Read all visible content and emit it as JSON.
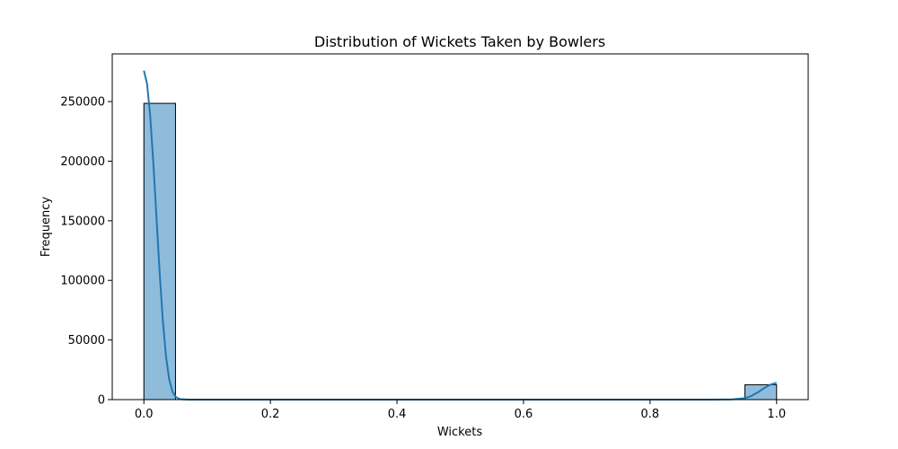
{
  "chart_data": {
    "type": "bar",
    "title": "Distribution of Wickets Taken by Bowlers",
    "xlabel": "Wickets",
    "ylabel": "Frequency",
    "xlim": [
      -0.05,
      1.05
    ],
    "ylim": [
      0,
      290000
    ],
    "xticks": [
      0.0,
      0.2,
      0.4,
      0.6,
      0.8,
      1.0
    ],
    "xtick_labels": [
      "0.0",
      "0.2",
      "0.4",
      "0.6",
      "0.8",
      "1.0"
    ],
    "yticks": [
      0,
      50000,
      100000,
      150000,
      200000,
      250000
    ],
    "ytick_labels": [
      "0",
      "50000",
      "100000",
      "150000",
      "200000",
      "250000"
    ],
    "grid": false,
    "bins": [
      {
        "x0": 0.0,
        "x1": 0.05,
        "count": 248500
      },
      {
        "x0": 0.95,
        "x1": 1.0,
        "count": 12500
      }
    ],
    "kde": {
      "x": [
        0.0,
        0.005,
        0.01,
        0.015,
        0.02,
        0.025,
        0.03,
        0.035,
        0.04,
        0.045,
        0.05,
        0.055,
        0.06,
        0.07,
        0.1,
        0.3,
        0.5,
        0.7,
        0.9,
        0.93,
        0.95,
        0.96,
        0.97,
        0.98,
        0.99,
        1.0
      ],
      "y": [
        276000,
        265000,
        238000,
        198000,
        152000,
        106000,
        66000,
        36000,
        17000,
        7000,
        2500,
        800,
        250,
        30,
        0,
        0,
        0,
        0,
        0,
        150,
        1200,
        3000,
        6000,
        9500,
        12500,
        14200
      ]
    },
    "colors": {
      "bar_fill": "#8fbcdb",
      "bar_edge": "#000000",
      "kde_line": "#1f77b4"
    }
  }
}
